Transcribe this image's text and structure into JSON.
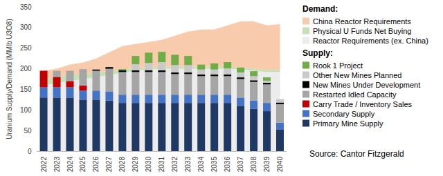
{
  "chart_data": {
    "type": "bar",
    "y_label": "Uranium Supply/Demand (MMlb U3O8)",
    "demand_heading": "Demand:",
    "supply_heading": "Supply:",
    "source": "Source: Cantor Fitzgerald",
    "categories": [
      "2022",
      "2023",
      "2024",
      "2025",
      "2026",
      "2027",
      "2028",
      "2029",
      "2030",
      "2031",
      "2032",
      "2033",
      "2034",
      "2035",
      "2036",
      "2037",
      "2038",
      "2039",
      "2040"
    ],
    "ylim": [
      0,
      350
    ],
    "yticks": [
      0,
      50,
      100,
      150,
      200,
      250,
      300,
      350
    ],
    "grid": false,
    "stacked": true,
    "legend": "right",
    "series": [
      {
        "name": "Reactor Requirements (ex. China)",
        "type": "area",
        "color": "#ececec",
        "values": [
          160,
          165,
          170,
          175,
          180,
          185,
          190,
          195,
          198,
          200,
          200,
          200,
          200,
          200,
          200,
          198,
          195,
          192,
          192
        ]
      },
      {
        "name": "Physical U Funds Net Buying",
        "type": "area",
        "color": "#c5e0b4",
        "values": [
          15,
          15,
          15,
          12,
          10,
          10,
          8,
          6,
          5,
          5,
          5,
          5,
          5,
          5,
          5,
          5,
          5,
          5,
          5
        ]
      },
      {
        "name": "China Reactor Requirements",
        "type": "area",
        "color": "#f8cbad",
        "values": [
          20,
          20,
          25,
          28,
          35,
          45,
          57,
          59,
          62,
          65,
          75,
          85,
          90,
          90,
          100,
          112,
          115,
          108,
          111
        ]
      },
      {
        "name": "Primary Mine Supply",
        "type": "bar",
        "color": "#1f3864",
        "values": [
          130,
          130,
          130,
          125,
          125,
          123,
          117,
          117,
          117,
          117,
          117,
          117,
          117,
          117,
          117,
          110,
          103,
          97,
          52
        ]
      },
      {
        "name": "Secondary Supply",
        "type": "bar",
        "color": "#4472c4",
        "values": [
          25,
          25,
          25,
          22,
          22,
          22,
          20,
          20,
          20,
          20,
          20,
          20,
          20,
          20,
          20,
          20,
          20,
          20,
          17
        ]
      },
      {
        "name": "Carry Trade / Inventory Sales",
        "type": "bar",
        "color": "#c00000",
        "values": [
          40,
          25,
          15,
          12,
          0,
          0,
          0,
          0,
          0,
          0,
          0,
          0,
          0,
          0,
          0,
          0,
          0,
          0,
          0
        ]
      },
      {
        "name": "Restarted Idled Capacity",
        "type": "bar",
        "color": "#a5a5a5",
        "values": [
          0,
          15,
          25,
          40,
          48,
          55,
          55,
          55,
          55,
          55,
          50,
          50,
          45,
          45,
          45,
          45,
          45,
          45,
          45
        ]
      },
      {
        "name": "New Mines Under Development",
        "type": "bar",
        "color": "#000000",
        "values": [
          0,
          0,
          0,
          0,
          3,
          4,
          4,
          4,
          4,
          4,
          4,
          4,
          4,
          4,
          4,
          4,
          4,
          4,
          4
        ]
      },
      {
        "name": "Other New Mines Planned",
        "type": "bar",
        "color": "#c9c9c9",
        "values": [
          0,
          0,
          0,
          0,
          0,
          0,
          0,
          15,
          18,
          20,
          18,
          18,
          12,
          12,
          15,
          12,
          10,
          5,
          8
        ]
      },
      {
        "name": "Rook 1 Project",
        "type": "bar",
        "color": "#70ad47",
        "values": [
          0,
          0,
          0,
          0,
          0,
          0,
          3,
          20,
          25,
          25,
          25,
          22,
          12,
          15,
          15,
          12,
          12,
          8,
          0
        ]
      }
    ]
  }
}
